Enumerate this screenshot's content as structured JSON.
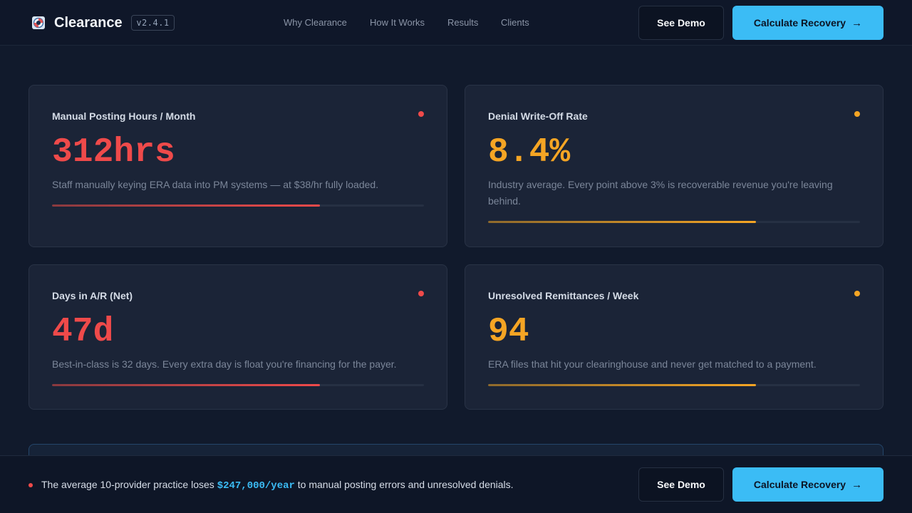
{
  "header": {
    "brand_name": "Clearance",
    "version": "v2.4.1",
    "nav": [
      "Why Clearance",
      "How It Works",
      "Results",
      "Clients"
    ],
    "demo_label": "See Demo",
    "calculate_label": "Calculate Recovery"
  },
  "cards": [
    {
      "label": "Manual Posting Hours / Month",
      "value": "312hrs",
      "description": "Staff manually keying ERA data into PM systems — at $38/hr fully loaded.",
      "severity_color": "#ef4a4a",
      "progress": 0.72
    },
    {
      "label": "Denial Write-Off Rate",
      "value": "8.4%",
      "description": "Industry average. Every point above 3% is recoverable revenue you're leaving behind.",
      "severity_color": "#f5a524",
      "progress": 0.72
    },
    {
      "label": "Days in A/R (Net)",
      "value": "47d",
      "description": "Best-in-class is 32 days. Every extra day is float you're financing for the payer.",
      "severity_color": "#ef4a4a",
      "progress": 0.72
    },
    {
      "label": "Unresolved Remittances / Week",
      "value": "94",
      "description": "ERA files that hit your clearinghouse and never get matched to a payment.",
      "severity_color": "#f5a524",
      "progress": 0.72
    }
  ],
  "footer": {
    "text_before": "The average 10-provider practice loses ",
    "amount": "$247,000/year",
    "text_after": " to manual posting errors and unresolved denials.",
    "demo_label": "See Demo",
    "calculate_label": "Calculate Recovery"
  },
  "icons": {
    "brand": "life-ring-icon",
    "arrow": "arrow-right-icon"
  }
}
